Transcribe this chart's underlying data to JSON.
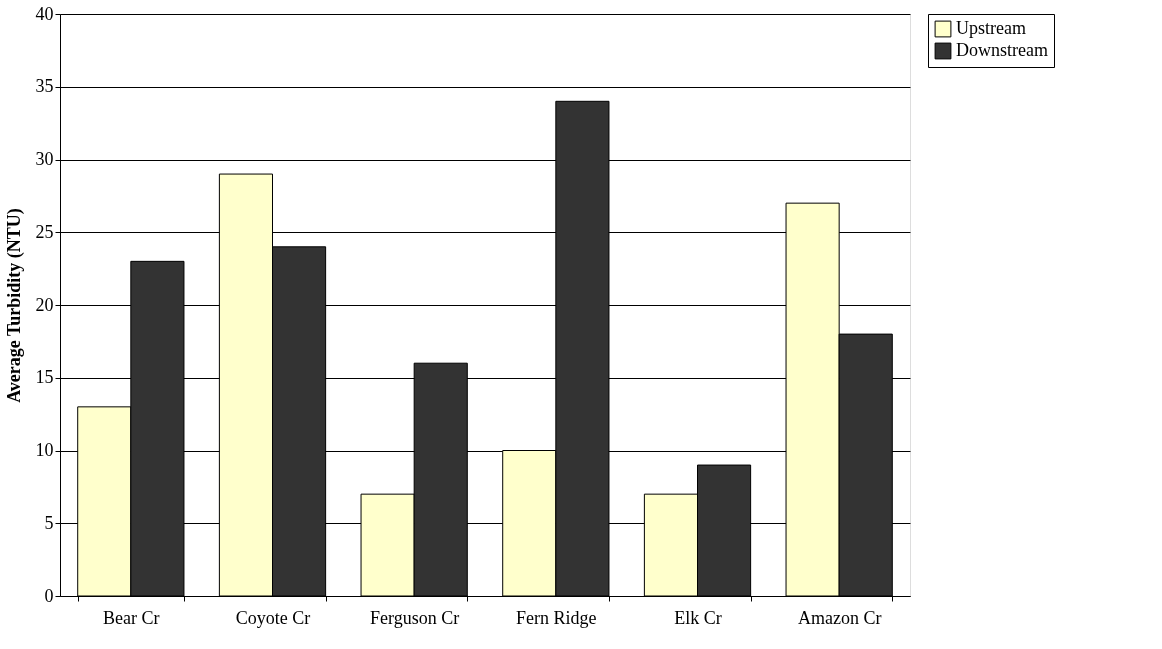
{
  "chart_data": {
    "type": "bar",
    "ylabel": "Average Turbidity (NTU)",
    "categories": [
      "Bear Cr",
      "Coyote Cr",
      "Ferguson Cr",
      "Fern Ridge",
      "Elk Cr",
      "Amazon Cr"
    ],
    "series": [
      {
        "name": "Upstream",
        "color": "#ffffcc",
        "values": [
          13,
          29,
          7,
          10,
          7,
          27
        ]
      },
      {
        "name": "Downstream",
        "color": "#333333",
        "values": [
          23,
          24,
          16,
          34,
          9,
          18
        ]
      }
    ],
    "ylim": [
      0,
      40
    ],
    "yticks": [
      0,
      5,
      10,
      15,
      20,
      25,
      30,
      35,
      40
    ],
    "grid": "y",
    "legend": "right"
  }
}
